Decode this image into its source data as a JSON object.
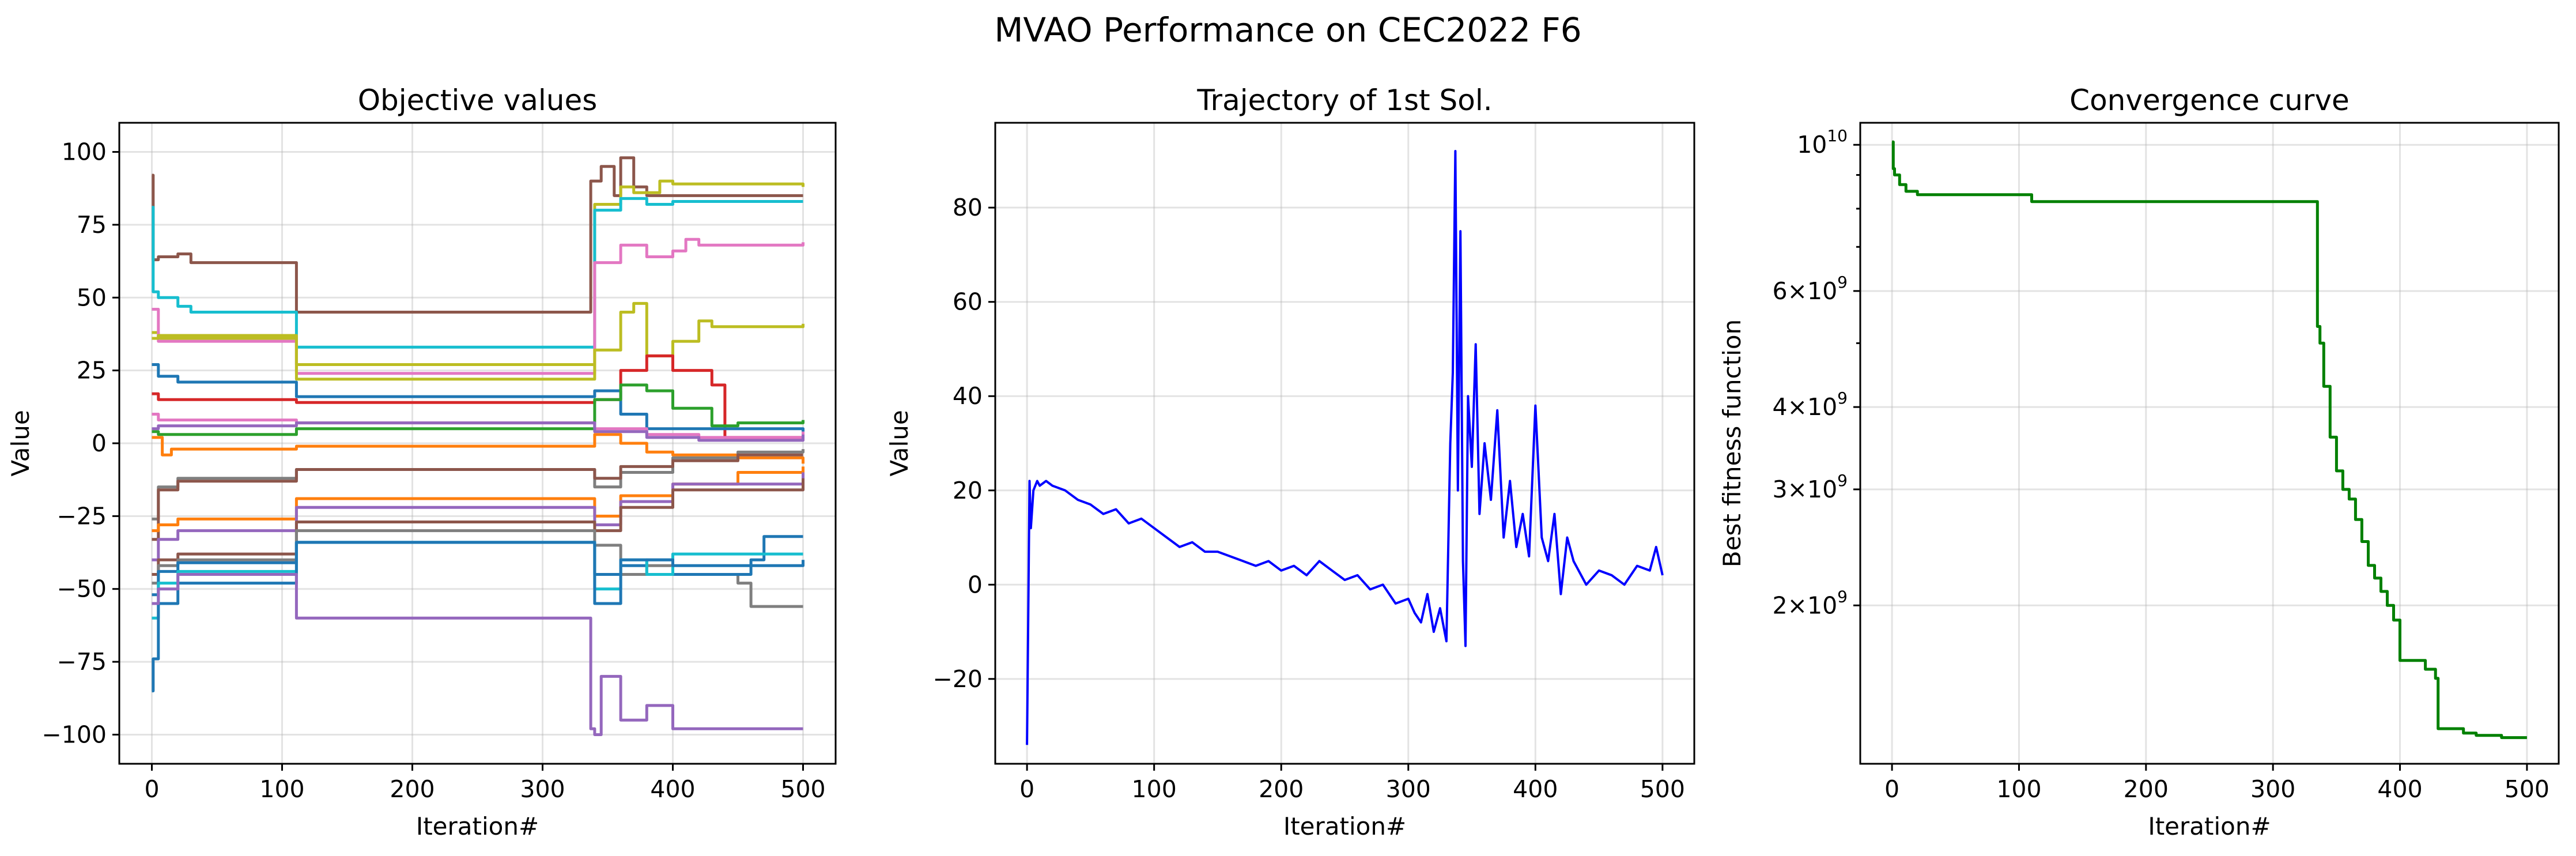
{
  "figure": {
    "title": "MVAO Performance on CEC2022 F6",
    "x_label": "Iteration#"
  },
  "chart_data": [
    {
      "id": "objective",
      "type": "line",
      "title": "Objective values",
      "xlabel": "Iteration#",
      "ylabel": "Value",
      "xlim": [
        -25,
        525
      ],
      "ylim": [
        -110,
        110
      ],
      "xticks": [
        0,
        100,
        200,
        300,
        400,
        500
      ],
      "yticks": [
        -100,
        -75,
        -50,
        -25,
        0,
        25,
        50,
        75,
        100
      ],
      "grid": true,
      "series": [
        {
          "color": "#8c564b",
          "x": [
            0,
            1,
            5,
            20,
            30,
            110,
            111,
            335,
            337,
            345,
            355,
            360,
            370,
            380,
            500
          ],
          "y": [
            92,
            63,
            64,
            65,
            62,
            62,
            45,
            45,
            90,
            95,
            85,
            98,
            88,
            85,
            85
          ]
        },
        {
          "color": "#bcbd22",
          "x": [
            0,
            5,
            110,
            111,
            335,
            340,
            360,
            370,
            390,
            400,
            500
          ],
          "y": [
            38,
            36,
            36,
            27,
            27,
            82,
            88,
            86,
            90,
            89,
            88
          ]
        },
        {
          "color": "#17becf",
          "x": [
            0,
            1,
            5,
            20,
            30,
            110,
            111,
            335,
            340,
            360,
            380,
            400,
            500
          ],
          "y": [
            81,
            52,
            50,
            47,
            45,
            45,
            33,
            33,
            80,
            84,
            82,
            83,
            83
          ]
        },
        {
          "color": "#e377c2",
          "x": [
            0,
            5,
            110,
            111,
            335,
            340,
            360,
            380,
            400,
            410,
            420,
            500
          ],
          "y": [
            46,
            35,
            35,
            24,
            24,
            62,
            68,
            64,
            66,
            70,
            68,
            69
          ]
        },
        {
          "color": "#bcbd22",
          "x": [
            0,
            5,
            110,
            111,
            335,
            340,
            360,
            370,
            380,
            400,
            420,
            430,
            500
          ],
          "y": [
            36,
            37,
            37,
            22,
            22,
            32,
            45,
            48,
            30,
            35,
            42,
            40,
            41
          ]
        },
        {
          "color": "#d62728",
          "x": [
            0,
            5,
            110,
            111,
            335,
            340,
            360,
            380,
            400,
            420,
            430,
            440,
            500
          ],
          "y": [
            17,
            15,
            15,
            14,
            14,
            15,
            25,
            30,
            25,
            25,
            20,
            2,
            1
          ]
        },
        {
          "color": "#1f77b4",
          "x": [
            0,
            5,
            20,
            110,
            111,
            335,
            340,
            360,
            380,
            500
          ],
          "y": [
            27,
            23,
            21,
            21,
            16,
            16,
            18,
            10,
            5,
            4
          ]
        },
        {
          "color": "#2ca02c",
          "x": [
            0,
            5,
            110,
            111,
            335,
            340,
            360,
            380,
            400,
            430,
            450,
            500
          ],
          "y": [
            4,
            3,
            3,
            5,
            5,
            15,
            20,
            18,
            12,
            6,
            7,
            8
          ]
        },
        {
          "color": "#ff7f0e",
          "x": [
            0,
            5,
            8,
            15,
            110,
            111,
            335,
            340,
            360,
            380,
            400,
            450,
            500
          ],
          "y": [
            2,
            2,
            -4,
            -2,
            -2,
            -1,
            -1,
            3,
            0,
            -3,
            -4,
            -5,
            -7
          ]
        },
        {
          "color": "#e377c2",
          "x": [
            0,
            5,
            110,
            111,
            335,
            340,
            380,
            420,
            500
          ],
          "y": [
            10,
            8,
            8,
            7,
            7,
            5,
            3,
            2,
            4
          ]
        },
        {
          "color": "#9467bd",
          "x": [
            0,
            5,
            110,
            111,
            335,
            340,
            380,
            420,
            500
          ],
          "y": [
            5,
            6,
            6,
            7,
            7,
            4,
            2,
            1,
            3
          ]
        },
        {
          "color": "#7f7f7f",
          "x": [
            0,
            5,
            20,
            110,
            111,
            335,
            340,
            360,
            400,
            450,
            500
          ],
          "y": [
            -26,
            -15,
            -12,
            -12,
            -9,
            -9,
            -15,
            -10,
            -5,
            -3,
            -2
          ]
        },
        {
          "color": "#8c564b",
          "x": [
            0,
            5,
            20,
            110,
            111,
            335,
            340,
            360,
            400,
            450,
            500
          ],
          "y": [
            -33,
            -16,
            -13,
            -13,
            -9,
            -9,
            -12,
            -8,
            -6,
            -4,
            -4
          ]
        },
        {
          "color": "#ff7f0e",
          "x": [
            0,
            5,
            20,
            110,
            111,
            335,
            340,
            360,
            400,
            450,
            500
          ],
          "y": [
            -30,
            -28,
            -26,
            -26,
            -19,
            -19,
            -25,
            -18,
            -14,
            -10,
            -8
          ]
        },
        {
          "color": "#9467bd",
          "x": [
            0,
            5,
            20,
            110,
            111,
            335,
            340,
            360,
            400,
            500
          ],
          "y": [
            -40,
            -33,
            -30,
            -30,
            -22,
            -22,
            -28,
            -20,
            -14,
            -10
          ]
        },
        {
          "color": "#8c564b",
          "x": [
            0,
            5,
            20,
            110,
            111,
            335,
            340,
            360,
            400,
            500
          ],
          "y": [
            -45,
            -40,
            -38,
            -38,
            -27,
            -27,
            -30,
            -22,
            -16,
            -12
          ]
        },
        {
          "color": "#7f7f7f",
          "x": [
            0,
            5,
            20,
            110,
            111,
            335,
            340,
            360,
            380,
            400,
            450,
            460,
            500
          ],
          "y": [
            -48,
            -42,
            -40,
            -40,
            -30,
            -30,
            -35,
            -45,
            -42,
            -45,
            -48,
            -56,
            -56
          ]
        },
        {
          "color": "#1f77b4",
          "x": [
            0,
            5,
            20,
            110,
            111,
            335,
            340,
            360,
            380,
            400,
            460,
            470,
            500
          ],
          "y": [
            -52,
            -44,
            -41,
            -41,
            -34,
            -34,
            -45,
            -42,
            -40,
            -45,
            -40,
            -32,
            -32
          ]
        },
        {
          "color": "#17becf",
          "x": [
            0,
            5,
            20,
            110,
            111,
            335,
            340,
            360,
            380,
            400,
            500
          ],
          "y": [
            -60,
            -48,
            -44,
            -44,
            -34,
            -34,
            -50,
            -40,
            -45,
            -38,
            -38
          ]
        },
        {
          "color": "#1f77b4",
          "x": [
            0,
            1,
            5,
            20,
            110,
            111,
            335,
            340,
            360,
            400,
            500
          ],
          "y": [
            -85,
            -74,
            -55,
            -48,
            -48,
            -34,
            -34,
            -55,
            -40,
            -42,
            -40
          ]
        },
        {
          "color": "#9467bd",
          "x": [
            0,
            5,
            20,
            110,
            111,
            335,
            337,
            340,
            345,
            360,
            380,
            400,
            500
          ],
          "y": [
            -55,
            -50,
            -45,
            -45,
            -60,
            -60,
            -98,
            -100,
            -80,
            -95,
            -90,
            -98,
            -98
          ]
        }
      ]
    },
    {
      "id": "trajectory",
      "type": "line",
      "title": "Trajectory of 1st Sol.",
      "xlabel": "Iteration#",
      "ylabel": "Value",
      "xlim": [
        -25,
        525
      ],
      "ylim": [
        -38,
        98
      ],
      "xticks": [
        0,
        100,
        200,
        300,
        400,
        500
      ],
      "yticks": [
        -20,
        0,
        20,
        40,
        60,
        80
      ],
      "grid": true,
      "series": [
        {
          "color": "#0000ff",
          "x": [
            0,
            2,
            3,
            5,
            8,
            10,
            15,
            20,
            30,
            40,
            50,
            60,
            70,
            80,
            90,
            100,
            110,
            120,
            130,
            140,
            150,
            160,
            170,
            180,
            190,
            200,
            210,
            220,
            230,
            240,
            250,
            260,
            270,
            280,
            290,
            300,
            305,
            310,
            315,
            320,
            325,
            330,
            333,
            335,
            337,
            339,
            341,
            343,
            345,
            347,
            350,
            353,
            356,
            360,
            365,
            370,
            375,
            380,
            385,
            390,
            395,
            400,
            405,
            410,
            415,
            420,
            425,
            430,
            440,
            450,
            460,
            470,
            480,
            490,
            495,
            500
          ],
          "y": [
            -34,
            22,
            12,
            20,
            22,
            21,
            22,
            21,
            20,
            18,
            17,
            15,
            16,
            13,
            14,
            12,
            10,
            8,
            9,
            7,
            7,
            6,
            5,
            4,
            5,
            3,
            4,
            2,
            5,
            3,
            1,
            2,
            -1,
            0,
            -4,
            -3,
            -6,
            -8,
            -2,
            -10,
            -5,
            -12,
            30,
            45,
            92,
            20,
            75,
            5,
            -13,
            40,
            25,
            51,
            15,
            30,
            18,
            37,
            10,
            22,
            8,
            15,
            6,
            38,
            10,
            5,
            15,
            -2,
            10,
            5,
            0,
            3,
            2,
            0,
            4,
            3,
            8,
            2
          ]
        }
      ]
    },
    {
      "id": "convergence",
      "type": "line",
      "title": "Convergence curve",
      "xlabel": "Iteration#",
      "ylabel": "Best fitness function",
      "log_scale_y": true,
      "xlim": [
        -25,
        525
      ],
      "ylim": [
        1150000000,
        10800000000
      ],
      "xticks": [
        0,
        100,
        200,
        300,
        400,
        500
      ],
      "yticks": [
        {
          "value": 10000000000,
          "mantissa": "",
          "exp": "10"
        },
        {
          "value": 6000000000,
          "mantissa": "6",
          "exp": "9"
        },
        {
          "value": 4000000000,
          "mantissa": "4",
          "exp": "9"
        },
        {
          "value": 3000000000,
          "mantissa": "3",
          "exp": "9"
        },
        {
          "value": 2000000000,
          "mantissa": "2",
          "exp": "9"
        }
      ],
      "grid": true,
      "series": [
        {
          "color": "#008000",
          "x": [
            0,
            1,
            2,
            5,
            6,
            10,
            11,
            15,
            20,
            30,
            100,
            109,
            110,
            200,
            300,
            334,
            335,
            337,
            340,
            345,
            350,
            355,
            360,
            365,
            370,
            375,
            380,
            385,
            390,
            395,
            400,
            410,
            420,
            428,
            430,
            440,
            450,
            460,
            480,
            500
          ],
          "y": [
            10100000000,
            9200000000,
            9000000000,
            9000000000,
            8700000000,
            8700000000,
            8500000000,
            8500000000,
            8400000000,
            8400000000,
            8400000000,
            8400000000,
            8200000000,
            8200000000,
            8200000000,
            8200000000,
            5300000000,
            5000000000,
            4300000000,
            3600000000,
            3200000000,
            3000000000,
            2900000000,
            2700000000,
            2500000000,
            2300000000,
            2200000000,
            2100000000,
            2000000000,
            1900000000,
            1650000000,
            1650000000,
            1600000000,
            1550000000,
            1300000000,
            1300000000,
            1280000000,
            1270000000,
            1260000000,
            1260000000
          ]
        }
      ]
    }
  ]
}
